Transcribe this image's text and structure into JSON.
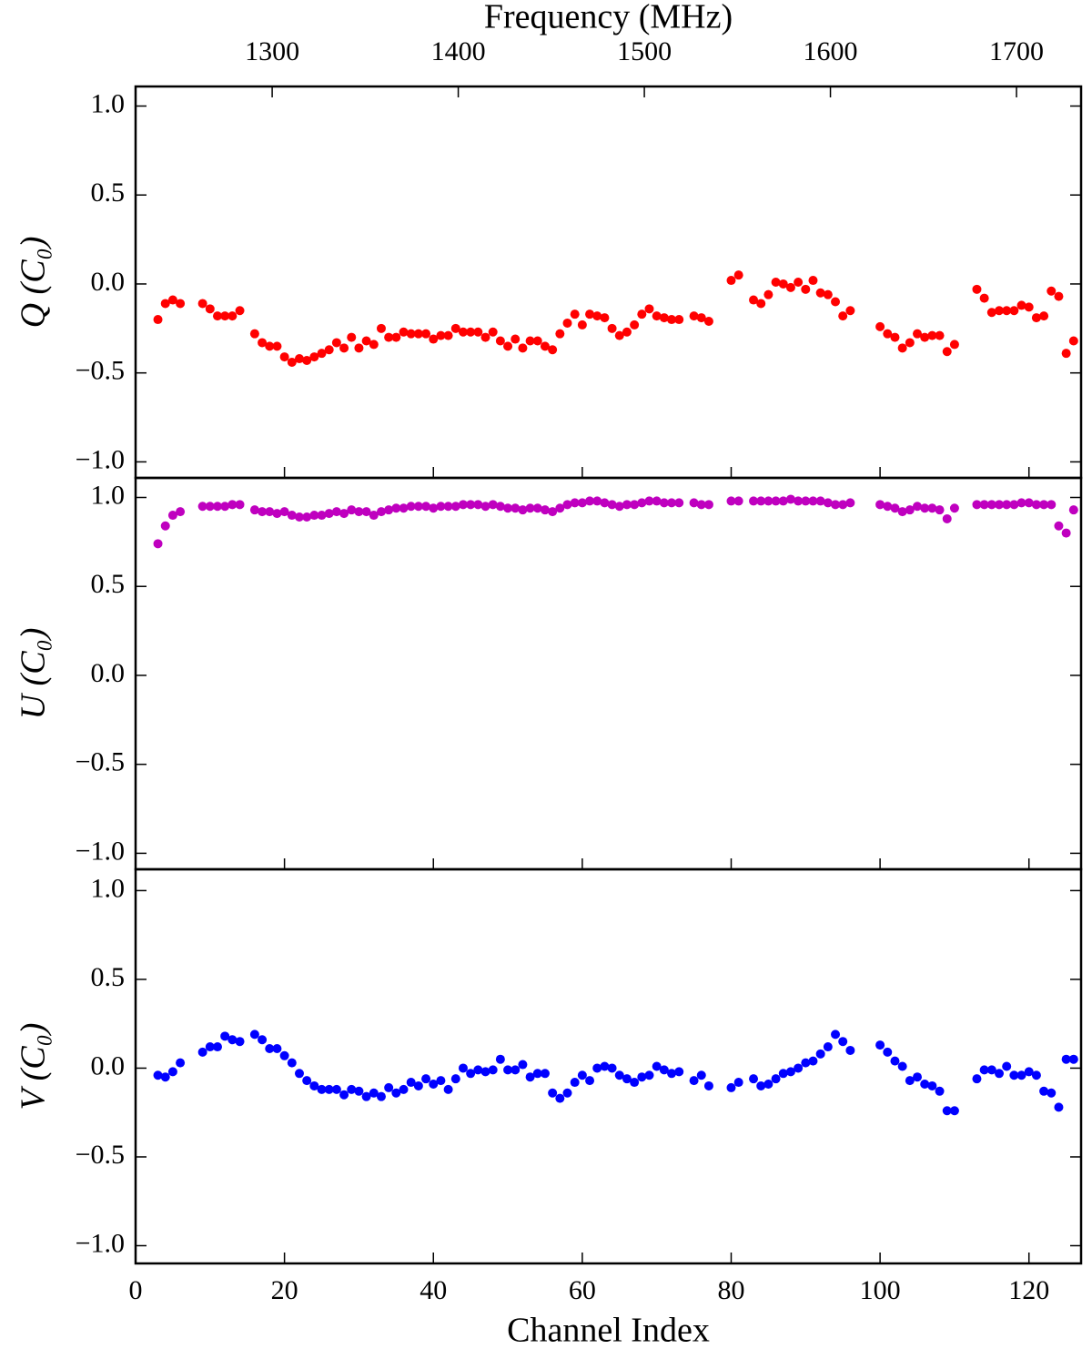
{
  "chart_data": [
    {
      "type": "scatter",
      "ylabel": "Q (C₀)",
      "color": "#ff0000",
      "x2label": "Frequency (MHz)",
      "x2lim": [
        1226.6,
        1734.7
      ],
      "x2ticks": [
        1300,
        1400,
        1500,
        1600,
        1700
      ],
      "xlim": [
        0,
        127
      ],
      "x": [
        3,
        4,
        5,
        6,
        9,
        10,
        11,
        12,
        13,
        14,
        16,
        17,
        18,
        19,
        20,
        21,
        22,
        23,
        24,
        25,
        26,
        27,
        28,
        29,
        30,
        31,
        32,
        33,
        34,
        35,
        36,
        37,
        38,
        39,
        40,
        41,
        42,
        43,
        44,
        45,
        46,
        47,
        48,
        49,
        50,
        51,
        52,
        53,
        54,
        55,
        56,
        57,
        58,
        59,
        60,
        61,
        62,
        63,
        64,
        65,
        66,
        67,
        68,
        69,
        70,
        71,
        72,
        73,
        75,
        76,
        77,
        80,
        81,
        83,
        84,
        85,
        86,
        87,
        88,
        89,
        90,
        91,
        92,
        93,
        94,
        95,
        96,
        100,
        101,
        102,
        103,
        104,
        105,
        106,
        107,
        108,
        109,
        110,
        113,
        114,
        115,
        116,
        117,
        118,
        119,
        120,
        121,
        122,
        123,
        124,
        125,
        126
      ],
      "values": [
        -0.2,
        -0.11,
        -0.09,
        -0.11,
        -0.11,
        -0.14,
        -0.18,
        -0.18,
        -0.18,
        -0.15,
        -0.28,
        -0.33,
        -0.35,
        -0.35,
        -0.41,
        -0.44,
        -0.42,
        -0.43,
        -0.41,
        -0.39,
        -0.37,
        -0.33,
        -0.36,
        -0.3,
        -0.36,
        -0.32,
        -0.34,
        -0.25,
        -0.3,
        -0.3,
        -0.27,
        -0.28,
        -0.28,
        -0.28,
        -0.31,
        -0.29,
        -0.29,
        -0.25,
        -0.27,
        -0.27,
        -0.27,
        -0.3,
        -0.27,
        -0.32,
        -0.35,
        -0.31,
        -0.36,
        -0.32,
        -0.32,
        -0.35,
        -0.37,
        -0.28,
        -0.22,
        -0.17,
        -0.23,
        -0.17,
        -0.18,
        -0.19,
        -0.25,
        -0.29,
        -0.27,
        -0.23,
        -0.17,
        -0.14,
        -0.18,
        -0.19,
        -0.2,
        -0.2,
        -0.18,
        -0.19,
        -0.21,
        0.02,
        0.05,
        -0.09,
        -0.11,
        -0.06,
        0.01,
        0.0,
        -0.02,
        0.01,
        -0.03,
        0.02,
        -0.05,
        -0.06,
        -0.1,
        -0.18,
        -0.15,
        -0.24,
        -0.28,
        -0.3,
        -0.36,
        -0.33,
        -0.28,
        -0.3,
        -0.29,
        -0.29,
        -0.38,
        -0.34,
        -0.03,
        -0.08,
        -0.16,
        -0.15,
        -0.15,
        -0.15,
        -0.12,
        -0.13,
        -0.19,
        -0.18,
        -0.04,
        -0.07,
        -0.39,
        -0.32
      ],
      "ylim": [
        -1.09,
        1.11
      ],
      "yticks": [
        {
          "value": -1,
          "label": "−1.0"
        },
        {
          "value": -0.5,
          "label": "−0.5"
        },
        {
          "value": 0,
          "label": "0.0"
        },
        {
          "value": 0.5,
          "label": "0.5"
        },
        {
          "value": 1,
          "label": "1.0"
        }
      ]
    },
    {
      "type": "scatter",
      "ylabel": "U (C₀)",
      "color": "#bf00bf",
      "xlim": [
        0,
        127
      ],
      "x": [
        3,
        4,
        5,
        6,
        9,
        10,
        11,
        12,
        13,
        14,
        16,
        17,
        18,
        19,
        20,
        21,
        22,
        23,
        24,
        25,
        26,
        27,
        28,
        29,
        30,
        31,
        32,
        33,
        34,
        35,
        36,
        37,
        38,
        39,
        40,
        41,
        42,
        43,
        44,
        45,
        46,
        47,
        48,
        49,
        50,
        51,
        52,
        53,
        54,
        55,
        56,
        57,
        58,
        59,
        60,
        61,
        62,
        63,
        64,
        65,
        66,
        67,
        68,
        69,
        70,
        71,
        72,
        73,
        75,
        76,
        77,
        80,
        81,
        83,
        84,
        85,
        86,
        87,
        88,
        89,
        90,
        91,
        92,
        93,
        94,
        95,
        96,
        100,
        101,
        102,
        103,
        104,
        105,
        106,
        107,
        108,
        109,
        110,
        113,
        114,
        115,
        116,
        117,
        118,
        119,
        120,
        121,
        122,
        123,
        124,
        125,
        126
      ],
      "values": [
        0.74,
        0.84,
        0.9,
        0.92,
        0.95,
        0.95,
        0.95,
        0.95,
        0.96,
        0.96,
        0.93,
        0.92,
        0.92,
        0.91,
        0.92,
        0.9,
        0.89,
        0.89,
        0.9,
        0.9,
        0.91,
        0.92,
        0.91,
        0.93,
        0.92,
        0.92,
        0.9,
        0.92,
        0.93,
        0.94,
        0.94,
        0.95,
        0.95,
        0.95,
        0.94,
        0.95,
        0.95,
        0.95,
        0.96,
        0.96,
        0.96,
        0.95,
        0.96,
        0.95,
        0.94,
        0.94,
        0.93,
        0.94,
        0.94,
        0.93,
        0.92,
        0.94,
        0.96,
        0.97,
        0.97,
        0.98,
        0.98,
        0.97,
        0.96,
        0.95,
        0.96,
        0.96,
        0.97,
        0.98,
        0.98,
        0.97,
        0.97,
        0.97,
        0.97,
        0.96,
        0.96,
        0.98,
        0.98,
        0.98,
        0.98,
        0.98,
        0.98,
        0.98,
        0.99,
        0.98,
        0.98,
        0.98,
        0.98,
        0.97,
        0.96,
        0.96,
        0.97,
        0.96,
        0.95,
        0.94,
        0.92,
        0.93,
        0.95,
        0.94,
        0.94,
        0.93,
        0.88,
        0.94,
        0.96,
        0.96,
        0.96,
        0.96,
        0.96,
        0.96,
        0.97,
        0.97,
        0.96,
        0.96,
        0.96,
        0.84,
        0.8,
        0.93
      ],
      "ylim": [
        -1.09,
        1.11
      ],
      "yticks": [
        {
          "value": -1,
          "label": "−1.0"
        },
        {
          "value": -0.5,
          "label": "−0.5"
        },
        {
          "value": 0,
          "label": "0.0"
        },
        {
          "value": 0.5,
          "label": "0.5"
        },
        {
          "value": 1,
          "label": "1.0"
        }
      ]
    },
    {
      "type": "scatter",
      "ylabel": "V (C₀)",
      "color": "#0000ff",
      "xlabel": "Channel Index",
      "xlim": [
        0,
        127
      ],
      "xticks": [
        0,
        20,
        40,
        60,
        80,
        100,
        120
      ],
      "x": [
        3,
        4,
        5,
        6,
        9,
        10,
        11,
        12,
        13,
        14,
        16,
        17,
        18,
        19,
        20,
        21,
        22,
        23,
        24,
        25,
        26,
        27,
        28,
        29,
        30,
        31,
        32,
        33,
        34,
        35,
        36,
        37,
        38,
        39,
        40,
        41,
        42,
        43,
        44,
        45,
        46,
        47,
        48,
        49,
        50,
        51,
        52,
        53,
        54,
        55,
        56,
        57,
        58,
        59,
        60,
        61,
        62,
        63,
        64,
        65,
        66,
        67,
        68,
        69,
        70,
        71,
        72,
        73,
        75,
        76,
        77,
        80,
        81,
        83,
        84,
        85,
        86,
        87,
        88,
        89,
        90,
        91,
        92,
        93,
        94,
        95,
        96,
        100,
        101,
        102,
        103,
        104,
        105,
        106,
        107,
        108,
        109,
        110,
        113,
        114,
        115,
        116,
        117,
        118,
        119,
        120,
        121,
        122,
        123,
        124,
        125,
        126
      ],
      "values": [
        -0.04,
        -0.05,
        -0.02,
        0.03,
        0.09,
        0.12,
        0.12,
        0.18,
        0.16,
        0.15,
        0.19,
        0.16,
        0.11,
        0.11,
        0.07,
        0.03,
        -0.03,
        -0.07,
        -0.1,
        -0.12,
        -0.12,
        -0.12,
        -0.15,
        -0.12,
        -0.13,
        -0.16,
        -0.14,
        -0.16,
        -0.11,
        -0.14,
        -0.12,
        -0.08,
        -0.1,
        -0.06,
        -0.09,
        -0.07,
        -0.12,
        -0.06,
        0.0,
        -0.03,
        -0.01,
        -0.02,
        -0.01,
        0.05,
        -0.01,
        -0.01,
        0.02,
        -0.05,
        -0.03,
        -0.03,
        -0.14,
        -0.17,
        -0.14,
        -0.08,
        -0.04,
        -0.07,
        0.0,
        0.01,
        0.0,
        -0.04,
        -0.06,
        -0.08,
        -0.05,
        -0.04,
        0.01,
        -0.01,
        -0.03,
        -0.02,
        -0.07,
        -0.04,
        -0.1,
        -0.11,
        -0.08,
        -0.06,
        -0.1,
        -0.09,
        -0.06,
        -0.03,
        -0.02,
        0.0,
        0.03,
        0.04,
        0.08,
        0.12,
        0.19,
        0.15,
        0.1,
        0.13,
        0.09,
        0.04,
        0.01,
        -0.07,
        -0.05,
        -0.09,
        -0.1,
        -0.13,
        -0.24,
        -0.24,
        -0.06,
        -0.01,
        -0.01,
        -0.03,
        0.01,
        -0.04,
        -0.04,
        -0.02,
        -0.04,
        -0.13,
        -0.14,
        -0.22,
        0.05,
        0.05
      ],
      "ylim": [
        -1.1,
        1.12
      ],
      "yticks": [
        {
          "value": -1,
          "label": "−1.0"
        },
        {
          "value": -0.5,
          "label": "−0.5"
        },
        {
          "value": 0,
          "label": "0.0"
        },
        {
          "value": 0.5,
          "label": "0.5"
        },
        {
          "value": 1,
          "label": "1.0"
        }
      ]
    }
  ]
}
